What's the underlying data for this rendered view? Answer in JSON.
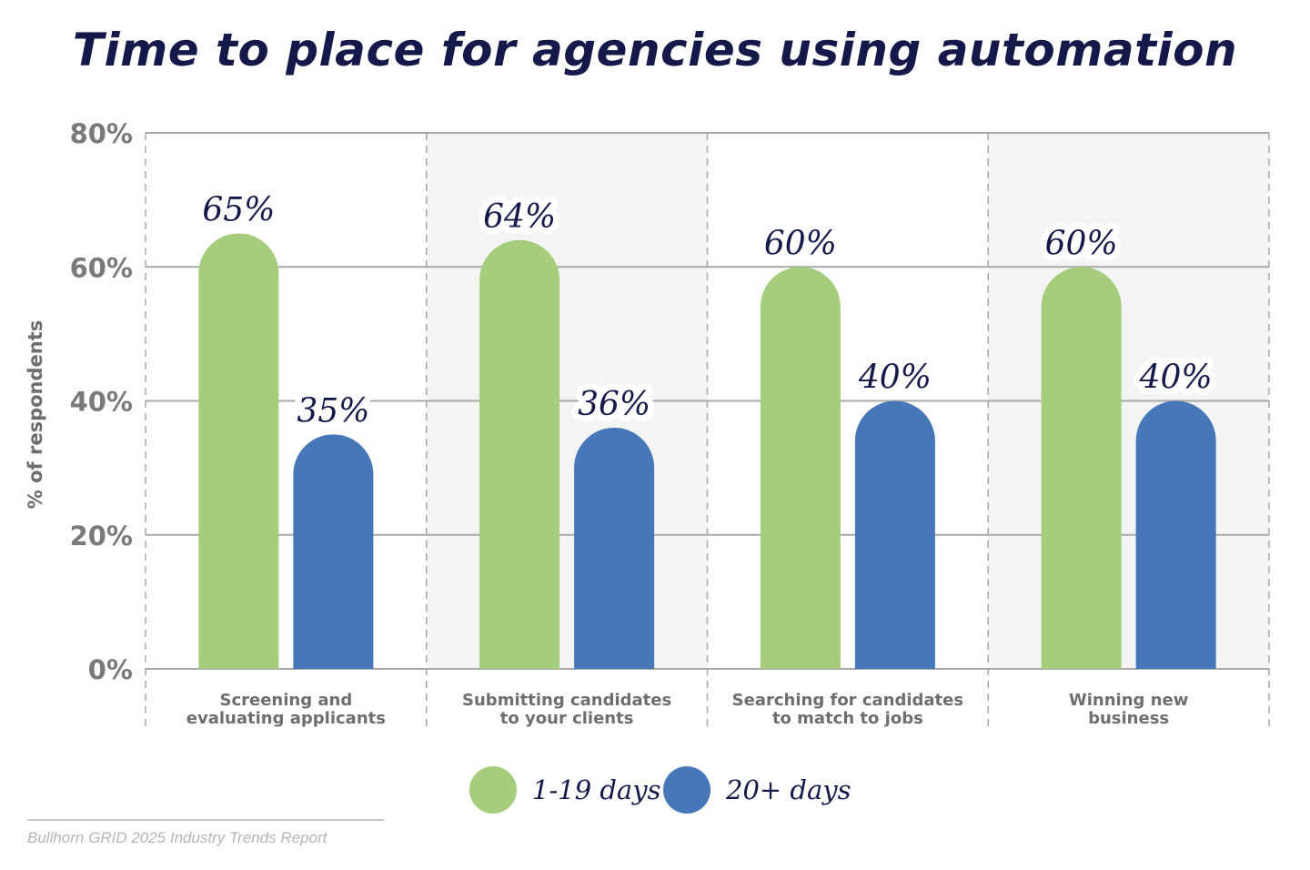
{
  "chart_data": {
    "type": "bar",
    "title": "Time to place for agencies using automation",
    "ylabel": "% of respondents",
    "xlabel": "",
    "ylim": [
      0,
      80
    ],
    "yticks": [
      0,
      20,
      40,
      60,
      80
    ],
    "ytick_labels": [
      "0%",
      "20%",
      "40%",
      "60%",
      "80%"
    ],
    "categories": [
      [
        "Screening and",
        "evaluating applicants"
      ],
      [
        "Submitting candidates",
        "to your clients"
      ],
      [
        "Searching for candidates",
        "to match to jobs"
      ],
      [
        "Winning new",
        "business"
      ]
    ],
    "series": [
      {
        "name": "1-19 days",
        "color": "#a5cd7c",
        "values": [
          65,
          64,
          60,
          60
        ],
        "labels": [
          "65%",
          "64%",
          "60%",
          "60%"
        ]
      },
      {
        "name": "20+ days",
        "color": "#4677b8",
        "values": [
          35,
          36,
          40,
          40
        ],
        "labels": [
          "35%",
          "36%",
          "40%",
          "40%"
        ]
      }
    ],
    "grid": true,
    "legend": "bottom-center",
    "source": "Bullhorn GRID 2025 Industry Trends Report"
  }
}
